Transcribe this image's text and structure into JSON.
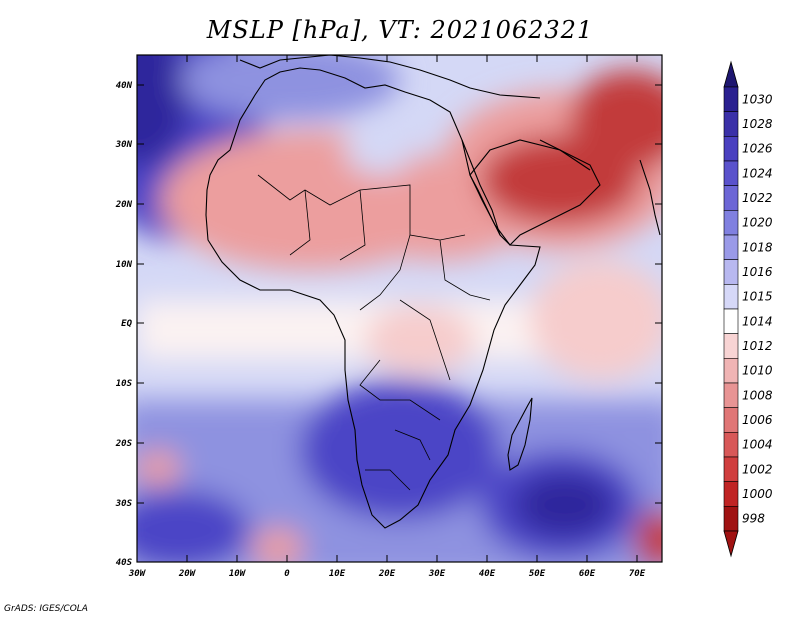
{
  "title": "MSLP [hPa], VT: 2021062321",
  "credit": "GrADS: IGES/COLA",
  "lat_labels": [
    "40N",
    "30N",
    "20N",
    "10N",
    "EQ",
    "10S",
    "20S",
    "30S",
    "40S"
  ],
  "lon_labels": [
    "30W",
    "20W",
    "10W",
    "0",
    "10E",
    "20E",
    "30E",
    "40E",
    "50E",
    "60E",
    "70E"
  ],
  "map_data": {
    "variable": "MSLP",
    "units": "hPa",
    "valid_time": "2021062321",
    "lon_range": [
      -30,
      75
    ],
    "lat_range": [
      -40,
      45
    ]
  },
  "colorbar": {
    "levels": [
      "1030",
      "1028",
      "1026",
      "1024",
      "1022",
      "1020",
      "1018",
      "1016",
      "1015",
      "1014",
      "1012",
      "1010",
      "1008",
      "1006",
      "1004",
      "1002",
      "1000",
      "998"
    ],
    "colors": [
      "#2a2090",
      "#3a30a8",
      "#4a40c0",
      "#5a52cc",
      "#6c66d6",
      "#8080e0",
      "#9a9ae8",
      "#b8b8f0",
      "#d6d8f8",
      "#ffffff",
      "#f8d4d4",
      "#f0b4b4",
      "#e89494",
      "#e07676",
      "#d85858",
      "#d03e3e",
      "#c02424",
      "#a01212"
    ],
    "top_arrow_color": "#1e1670",
    "bottom_arrow_color": "#a01212"
  },
  "colors": {
    "hot": "#c23a3a",
    "warm": "#ec9e9e",
    "light_warm": "#f6cccc",
    "neutral": "#fbf2f2",
    "light_cool": "#d4d8f6",
    "cool": "#8e92e0",
    "deep_cool": "#4c44c6",
    "deepest": "#2f279c",
    "border_line": "#000000"
  }
}
